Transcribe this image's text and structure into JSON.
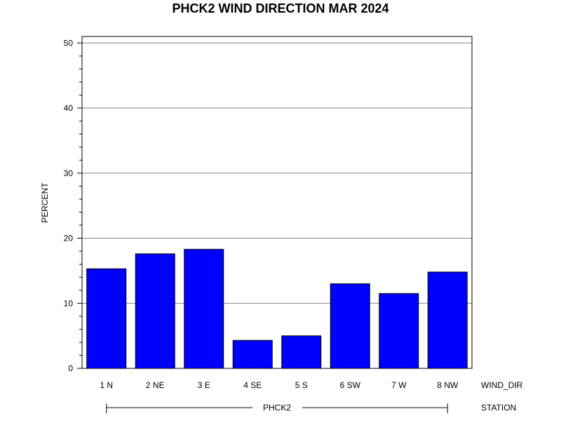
{
  "chart_data": {
    "type": "bar",
    "title": "PHCK2 WIND DIRECTION MAR 2024",
    "ylabel": "PERCENT",
    "xlabel": "WIND_DIR",
    "group_label": "STATION",
    "group_name": "PHCK2",
    "categories": [
      "1 N",
      "2 NE",
      "3 E",
      "4 SE",
      "5 S",
      "6 SW",
      "7 W",
      "8 NW"
    ],
    "values": [
      15.3,
      17.6,
      18.3,
      4.3,
      5.0,
      13.0,
      11.5,
      14.8
    ],
    "ylim": [
      0,
      51
    ],
    "yticks": [
      0,
      10,
      20,
      30,
      40,
      50
    ],
    "grid": true,
    "bar_color": "#0000ff",
    "grid_color": "#808080"
  }
}
